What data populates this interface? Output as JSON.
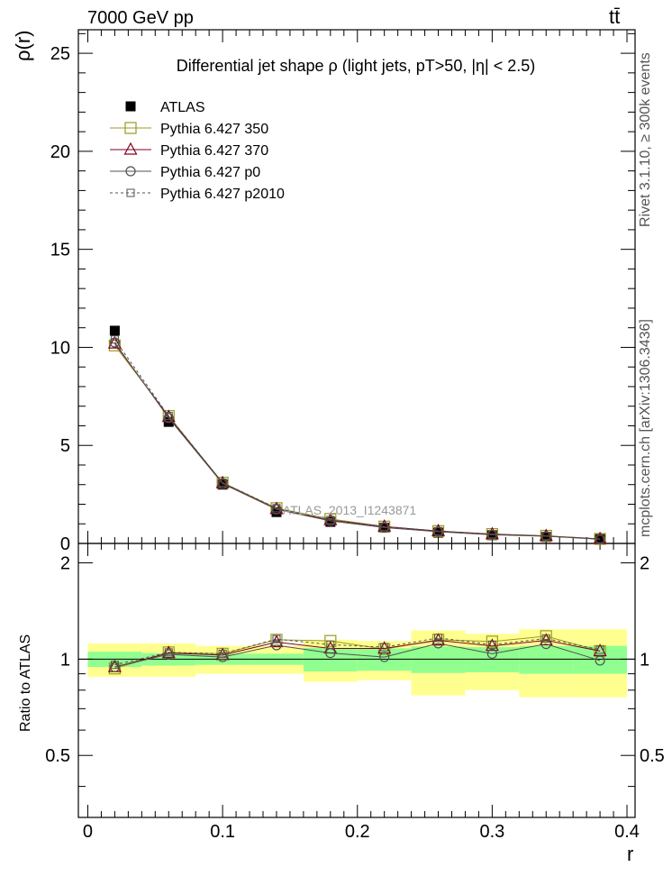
{
  "header": {
    "left": "7000 GeV pp",
    "right": "tt̄"
  },
  "side_labels": {
    "rivet": "Rivet 3.1.10, ≥ 300k events",
    "mcplots": "mcplots.cern.ch [arXiv:1306.3436]"
  },
  "chart_data": {
    "type": "line",
    "title": "Differential jet shape  ρ (light jets, pT>50, |η| < 2.5)",
    "watermark": "ATLAS_2013_I1243871",
    "xlabel": "r",
    "ylabel": "ρ(r)",
    "ratio_ylabel": "Ratio to ATLAS",
    "xlim": [
      -0.007,
      0.406
    ],
    "ylim": [
      0,
      26.2
    ],
    "ratio_ylim": [
      0.32,
      2.3
    ],
    "x_ticks": [
      "0",
      "0.1",
      "0.2",
      "0.3",
      "0.4"
    ],
    "y_ticks": [
      "0",
      "5",
      "10",
      "15",
      "20",
      "25"
    ],
    "ratio_y_ticks": [
      "0.5",
      "1",
      "2"
    ],
    "x": [
      0.02,
      0.06,
      0.1,
      0.14,
      0.18,
      0.22,
      0.26,
      0.3,
      0.34,
      0.38
    ],
    "bin_edges": [
      0,
      0.04,
      0.08,
      0.12,
      0.16,
      0.2,
      0.24,
      0.28,
      0.32,
      0.36,
      0.4
    ],
    "data": {
      "name": "ATLAS",
      "values": [
        10.85,
        6.2,
        3.0,
        1.6,
        1.1,
        0.8,
        0.55,
        0.42,
        0.33,
        0.22
      ],
      "band_inner": [
        0.055,
        0.045,
        0.04,
        0.04,
        0.085,
        0.08,
        0.095,
        0.09,
        0.1,
        0.1
      ],
      "band_outer": [
        0.12,
        0.12,
        0.1,
        0.1,
        0.15,
        0.14,
        0.23,
        0.2,
        0.24,
        0.24
      ]
    },
    "series": [
      {
        "name": "Pythia 6.427 350",
        "color": "#9a9a22",
        "marker": "square-open",
        "dash": "solid",
        "values": [
          10.1,
          6.5,
          3.1,
          1.8,
          1.25,
          0.86,
          0.63,
          0.48,
          0.39,
          0.23
        ],
        "ratio": [
          0.935,
          1.05,
          1.04,
          1.15,
          1.14,
          1.075,
          1.15,
          1.135,
          1.18,
          1.06
        ]
      },
      {
        "name": "Pythia 6.427 370",
        "color": "#800020",
        "marker": "triangle-open",
        "dash": "solid",
        "values": [
          10.2,
          6.45,
          3.08,
          1.75,
          1.19,
          0.86,
          0.63,
          0.47,
          0.38,
          0.23
        ],
        "ratio": [
          0.945,
          1.045,
          1.03,
          1.13,
          1.08,
          1.08,
          1.145,
          1.1,
          1.145,
          1.06
        ]
      },
      {
        "name": "Pythia 6.427 p0",
        "color": "#505050",
        "marker": "circle-open",
        "dash": "solid",
        "values": [
          10.25,
          6.4,
          3.05,
          1.74,
          1.15,
          0.81,
          0.6,
          0.44,
          0.37,
          0.21
        ],
        "ratio": [
          0.945,
          1.035,
          1.015,
          1.105,
          1.045,
          1.015,
          1.12,
          1.04,
          1.115,
          0.99
        ]
      },
      {
        "name": "Pythia 6.427 p2010",
        "color": "#505050",
        "marker": "square-small-open",
        "dash": "dashed",
        "values": [
          10.4,
          6.5,
          3.1,
          1.8,
          1.2,
          0.86,
          0.63,
          0.47,
          0.38,
          0.23
        ],
        "ratio": [
          0.96,
          1.05,
          1.04,
          1.155,
          1.11,
          1.09,
          1.165,
          1.11,
          1.16,
          1.07
        ]
      }
    ]
  }
}
